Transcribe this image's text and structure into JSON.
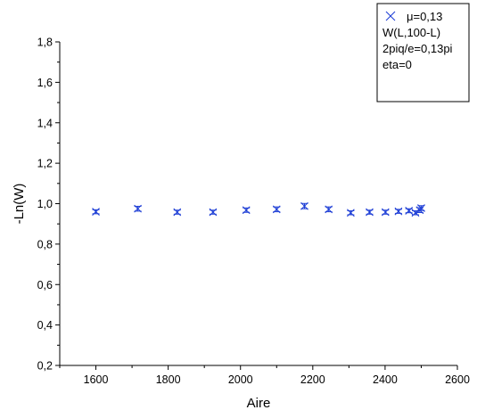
{
  "chart_data": {
    "type": "scatter",
    "title": "",
    "xlabel": "Aire",
    "ylabel": "-Ln(W)",
    "xlim": [
      1500,
      2600
    ],
    "ylim": [
      0.2,
      1.8
    ],
    "x_ticks": [
      1600,
      1800,
      2000,
      2200,
      2400,
      2600
    ],
    "x_tick_labels": [
      "1600",
      "1800",
      "2000",
      "2200",
      "2400",
      "2600"
    ],
    "y_ticks": [
      0.2,
      0.4,
      0.6,
      0.8,
      1.0,
      1.2,
      1.4,
      1.6,
      1.8
    ],
    "y_tick_labels": [
      "0,2",
      "0,4",
      "0,6",
      "0,8",
      "1,0",
      "1,2",
      "1,4",
      "1,6",
      "1,8"
    ],
    "grid": false,
    "legend_position": "top-right",
    "marker_color": "#1f3fd6",
    "series": [
      {
        "marker": "x-icon",
        "legend_lines": [
          "μ=0,13",
          "W(L,100-L)",
          "2piq/e=0,13pi",
          "eta=0"
        ],
        "x": [
          1600,
          1716,
          1825,
          1924,
          2016,
          2100,
          2177,
          2244,
          2305,
          2357,
          2401,
          2437,
          2466,
          2484,
          2496,
          2500
        ],
        "y": [
          0.96,
          0.975,
          0.958,
          0.958,
          0.968,
          0.972,
          0.988,
          0.972,
          0.955,
          0.958,
          0.958,
          0.962,
          0.965,
          0.955,
          0.968,
          0.978
        ],
        "yerr": [
          0.01,
          0.012,
          0.01,
          0.01,
          0.011,
          0.012,
          0.013,
          0.012,
          0.01,
          0.01,
          0.01,
          0.01,
          0.01,
          0.01,
          0.012,
          0.012
        ]
      }
    ]
  }
}
